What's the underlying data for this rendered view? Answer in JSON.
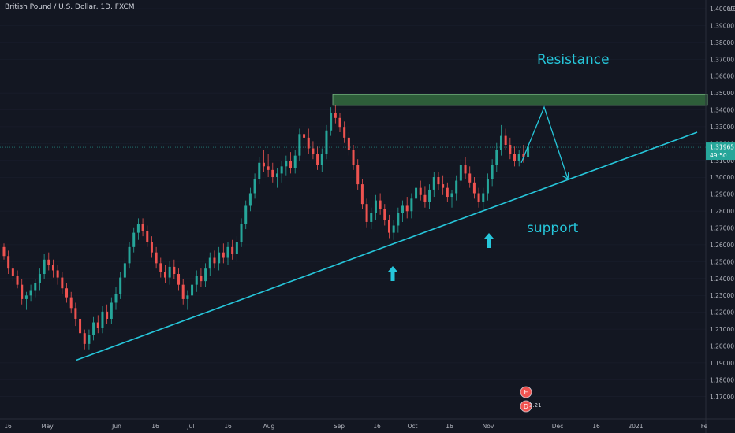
{
  "symbol_header": "British Pound / U.S. Dollar, 1D, FXCM",
  "colors": {
    "background": "#131722",
    "up": "#26a69a",
    "down": "#ef5350",
    "accent": "#26c6da",
    "zone": "#2e5e3a"
  },
  "price_axis": {
    "currency": "USD",
    "current_price": "1.31965",
    "countdown": "49:50"
  },
  "annotations": {
    "resistance": "Resistance",
    "support": "support"
  },
  "badges": [
    {
      "label": "E"
    },
    {
      "label": "D"
    }
  ],
  "badge_text": "2.21",
  "chart_data": {
    "type": "candlestick",
    "title": "British Pound / U.S. Dollar, 1D, FXCM",
    "ylim": [
      1.17,
      1.4
    ],
    "y_ticks": [
      "1.40000",
      "1.39000",
      "1.38000",
      "1.37000",
      "1.36000",
      "1.35000",
      "1.34000",
      "1.33000",
      "1.32000",
      "1.31000",
      "1.30000",
      "1.29000",
      "1.28000",
      "1.27000",
      "1.26000",
      "1.25000",
      "1.24000",
      "1.23000",
      "1.22000",
      "1.21000",
      "1.20000",
      "1.19000",
      "1.18000",
      "1.17000"
    ],
    "x_ticks": [
      "16",
      "May",
      "Jun",
      "16",
      "Jul",
      "16",
      "Aug",
      "Sep",
      "16",
      "Oct",
      "16",
      "Nov",
      "Dec",
      "16",
      "2021",
      "Fe"
    ],
    "last_price": 1.31965,
    "resistance_zone": [
      1.343,
      1.349
    ],
    "support_trendline": {
      "from": [
        "mid-April",
        1.201
      ],
      "to": [
        "late December",
        1.328
      ]
    },
    "projection_path": [
      1.311,
      1.342,
      1.302
    ],
    "candles": [
      [
        1.264,
        1.266,
        1.257,
        1.259
      ],
      [
        1.259,
        1.262,
        1.249,
        1.252
      ],
      [
        1.252,
        1.255,
        1.245,
        1.248
      ],
      [
        1.248,
        1.251,
        1.241,
        1.243
      ],
      [
        1.243,
        1.246,
        1.232,
        1.235
      ],
      [
        1.235,
        1.239,
        1.229,
        1.237
      ],
      [
        1.237,
        1.243,
        1.234,
        1.24
      ],
      [
        1.24,
        1.246,
        1.236,
        1.244
      ],
      [
        1.244,
        1.252,
        1.24,
        1.249
      ],
      [
        1.249,
        1.26,
        1.246,
        1.257
      ],
      [
        1.257,
        1.261,
        1.251,
        1.254
      ],
      [
        1.254,
        1.257,
        1.247,
        1.251
      ],
      [
        1.251,
        1.254,
        1.243,
        1.247
      ],
      [
        1.247,
        1.25,
        1.238,
        1.241
      ],
      [
        1.241,
        1.244,
        1.233,
        1.236
      ],
      [
        1.236,
        1.239,
        1.227,
        1.23
      ],
      [
        1.23,
        1.233,
        1.22,
        1.224
      ],
      [
        1.224,
        1.227,
        1.213,
        1.216
      ],
      [
        1.216,
        1.218,
        1.207,
        1.21
      ],
      [
        1.21,
        1.218,
        1.207,
        1.215
      ],
      [
        1.215,
        1.225,
        1.212,
        1.222
      ],
      [
        1.222,
        1.226,
        1.216,
        1.219
      ],
      [
        1.219,
        1.231,
        1.216,
        1.228
      ],
      [
        1.228,
        1.232,
        1.221,
        1.224
      ],
      [
        1.224,
        1.236,
        1.221,
        1.233
      ],
      [
        1.233,
        1.242,
        1.229,
        1.238
      ],
      [
        1.238,
        1.25,
        1.235,
        1.247
      ],
      [
        1.247,
        1.258,
        1.244,
        1.255
      ],
      [
        1.255,
        1.267,
        1.252,
        1.264
      ],
      [
        1.264,
        1.275,
        1.261,
        1.272
      ],
      [
        1.272,
        1.28,
        1.268,
        1.277
      ],
      [
        1.277,
        1.28,
        1.27,
        1.273
      ],
      [
        1.273,
        1.276,
        1.264,
        1.267
      ],
      [
        1.267,
        1.27,
        1.258,
        1.261
      ],
      [
        1.261,
        1.264,
        1.252,
        1.255
      ],
      [
        1.255,
        1.258,
        1.247,
        1.25
      ],
      [
        1.25,
        1.254,
        1.244,
        1.247
      ],
      [
        1.247,
        1.256,
        1.243,
        1.253
      ],
      [
        1.253,
        1.257,
        1.246,
        1.249
      ],
      [
        1.249,
        1.252,
        1.24,
        1.243
      ],
      [
        1.243,
        1.246,
        1.232,
        1.235
      ],
      [
        1.235,
        1.24,
        1.229,
        1.237
      ],
      [
        1.237,
        1.246,
        1.233,
        1.243
      ],
      [
        1.243,
        1.251,
        1.239,
        1.248
      ],
      [
        1.248,
        1.252,
        1.242,
        1.245
      ],
      [
        1.245,
        1.255,
        1.242,
        1.252
      ],
      [
        1.252,
        1.261,
        1.248,
        1.258
      ],
      [
        1.258,
        1.262,
        1.252,
        1.255
      ],
      [
        1.255,
        1.264,
        1.251,
        1.261
      ],
      [
        1.261,
        1.266,
        1.255,
        1.258
      ],
      [
        1.258,
        1.267,
        1.254,
        1.264
      ],
      [
        1.264,
        1.268,
        1.257,
        1.26
      ],
      [
        1.26,
        1.27,
        1.256,
        1.267
      ],
      [
        1.267,
        1.28,
        1.264,
        1.277
      ],
      [
        1.277,
        1.29,
        1.274,
        1.287
      ],
      [
        1.287,
        1.297,
        1.284,
        1.294
      ],
      [
        1.294,
        1.305,
        1.291,
        1.302
      ],
      [
        1.302,
        1.314,
        1.299,
        1.311
      ],
      [
        1.311,
        1.318,
        1.306,
        1.309
      ],
      [
        1.309,
        1.316,
        1.303,
        1.307
      ],
      [
        1.307,
        1.311,
        1.3,
        1.303
      ],
      [
        1.303,
        1.308,
        1.297,
        1.305
      ],
      [
        1.305,
        1.312,
        1.3,
        1.309
      ],
      [
        1.309,
        1.315,
        1.304,
        1.312
      ],
      [
        1.312,
        1.317,
        1.305,
        1.308
      ],
      [
        1.308,
        1.318,
        1.305,
        1.315
      ],
      [
        1.315,
        1.33,
        1.312,
        1.327
      ],
      [
        1.327,
        1.333,
        1.322,
        1.325
      ],
      [
        1.325,
        1.33,
        1.316,
        1.319
      ],
      [
        1.319,
        1.323,
        1.313,
        1.316
      ],
      [
        1.316,
        1.32,
        1.307,
        1.31
      ],
      [
        1.31,
        1.319,
        1.306,
        1.316
      ],
      [
        1.316,
        1.332,
        1.313,
        1.329
      ],
      [
        1.329,
        1.342,
        1.326,
        1.339
      ],
      [
        1.339,
        1.343,
        1.333,
        1.336
      ],
      [
        1.336,
        1.339,
        1.328,
        1.331
      ],
      [
        1.331,
        1.334,
        1.322,
        1.325
      ],
      [
        1.325,
        1.328,
        1.315,
        1.318
      ],
      [
        1.318,
        1.321,
        1.307,
        1.31
      ],
      [
        1.31,
        1.313,
        1.296,
        1.299
      ],
      [
        1.299,
        1.302,
        1.285,
        1.288
      ],
      [
        1.288,
        1.291,
        1.275,
        1.278
      ],
      [
        1.278,
        1.286,
        1.274,
        1.283
      ],
      [
        1.283,
        1.293,
        1.279,
        1.29
      ],
      [
        1.29,
        1.294,
        1.282,
        1.285
      ],
      [
        1.285,
        1.288,
        1.276,
        1.279
      ],
      [
        1.279,
        1.282,
        1.269,
        1.272
      ],
      [
        1.272,
        1.279,
        1.268,
        1.276
      ],
      [
        1.276,
        1.286,
        1.272,
        1.283
      ],
      [
        1.283,
        1.29,
        1.278,
        1.287
      ],
      [
        1.287,
        1.292,
        1.28,
        1.284
      ],
      [
        1.284,
        1.294,
        1.28,
        1.291
      ],
      [
        1.291,
        1.301,
        1.287,
        1.297
      ],
      [
        1.297,
        1.301,
        1.29,
        1.293
      ],
      [
        1.293,
        1.298,
        1.286,
        1.289
      ],
      [
        1.289,
        1.299,
        1.285,
        1.296
      ],
      [
        1.296,
        1.306,
        1.292,
        1.303
      ],
      [
        1.303,
        1.306,
        1.296,
        1.299
      ],
      [
        1.299,
        1.304,
        1.293,
        1.297
      ],
      [
        1.297,
        1.3,
        1.289,
        1.292
      ],
      [
        1.292,
        1.296,
        1.286,
        1.294
      ],
      [
        1.294,
        1.304,
        1.29,
        1.301
      ],
      [
        1.301,
        1.313,
        1.298,
        1.31
      ],
      [
        1.31,
        1.314,
        1.302,
        1.305
      ],
      [
        1.305,
        1.309,
        1.297,
        1.3
      ],
      [
        1.3,
        1.303,
        1.291,
        1.294
      ],
      [
        1.294,
        1.297,
        1.286,
        1.289
      ],
      [
        1.289,
        1.297,
        1.285,
        1.294
      ],
      [
        1.294,
        1.305,
        1.29,
        1.302
      ],
      [
        1.302,
        1.313,
        1.298,
        1.31
      ],
      [
        1.31,
        1.322,
        1.306,
        1.318
      ],
      [
        1.318,
        1.332,
        1.315,
        1.326
      ],
      [
        1.326,
        1.33,
        1.318,
        1.321
      ],
      [
        1.321,
        1.325,
        1.313,
        1.316
      ],
      [
        1.316,
        1.32,
        1.309,
        1.312
      ],
      [
        1.312,
        1.318,
        1.309,
        1.316
      ],
      [
        1.316,
        1.321,
        1.311,
        1.314
      ],
      [
        1.314,
        1.322,
        1.311,
        1.32
      ]
    ]
  }
}
